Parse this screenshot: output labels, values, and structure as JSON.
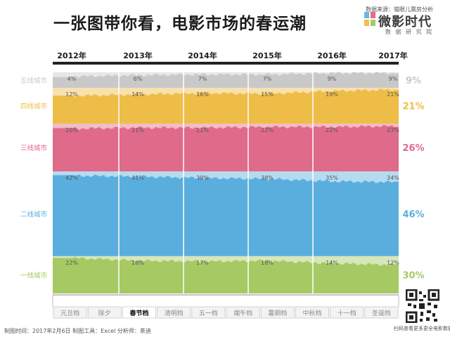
{
  "header": {
    "title": "一张图带你看，电影市场的春运潮",
    "source": "数据来源：猫眼儿票房分析",
    "brand_logo": "微影时代",
    "brand_sub": "数 据 研 究 院"
  },
  "footer": {
    "text": "制图时间：2017年2月6日   制图工具：Excel  分析师：茶迪",
    "scan_note": "扫码查看更多更全电影数据"
  },
  "colors": {
    "tier1": "#a6c964",
    "tier2": "#5aaede",
    "tier3": "#df6a8a",
    "tier4": "#eebd48",
    "tier5": "#c9c9c9"
  },
  "chart_data": {
    "type": "area",
    "title": "一张图带你看，电影市场的春运潮",
    "year_labels": [
      "2012年",
      "2013年",
      "2014年",
      "2015年",
      "2016年",
      "2017年"
    ],
    "holiday_labels": [
      "元旦档",
      "除夕",
      "春节档",
      "清明档",
      "五一档",
      "端午档",
      "暑期档",
      "中秋档",
      "十一档",
      "圣诞档"
    ],
    "highlight_holiday": "春节档",
    "ylim": [
      0,
      100
    ],
    "grid": false,
    "legend": "left",
    "series": [
      {
        "name": "一线城市",
        "labels": [
          "22%",
          "18%",
          "17%",
          "18%",
          "14%",
          "12%"
        ],
        "values": [
          22,
          18,
          17,
          18,
          14,
          12
        ],
        "final_label": "30%"
      },
      {
        "name": "二线城市",
        "labels": [
          "42%",
          "41%",
          "39%",
          "38%",
          "35%",
          "34%"
        ],
        "values": [
          42,
          41,
          39,
          38,
          35,
          34
        ],
        "final_label": "46%"
      },
      {
        "name": "三线城市",
        "labels": [
          "20%",
          "21%",
          "21%",
          "22%",
          "22%",
          "23%"
        ],
        "values": [
          20,
          21,
          21,
          22,
          22,
          23
        ],
        "final_label": "26%"
      },
      {
        "name": "四线城市",
        "labels": [
          "12%",
          "14%",
          "16%",
          "15%",
          "19%",
          "21%"
        ],
        "values": [
          12,
          14,
          16,
          15,
          19,
          21
        ],
        "final_label": "21%"
      },
      {
        "name": "五线城市",
        "labels": [
          "4%",
          "6%",
          "7%",
          "7%",
          "9%",
          "9%"
        ],
        "values": [
          4,
          6,
          7,
          7,
          9,
          9
        ],
        "final_label": "9%"
      }
    ]
  }
}
